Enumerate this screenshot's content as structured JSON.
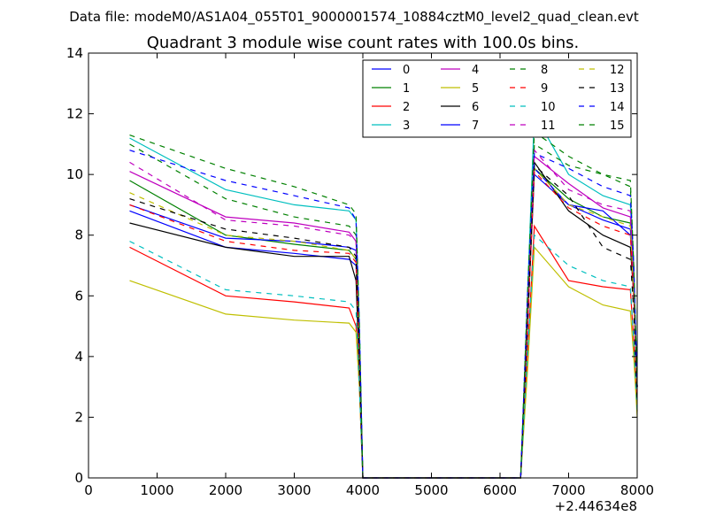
{
  "figure": {
    "suptitle": "Data file: modeM0/AS1A04_055T01_9000001574_10884cztM0_level2_quad_clean.evt"
  },
  "chart_data": {
    "type": "line",
    "title": "Quadrant 3 module wise count rates with 100.0s bins.",
    "xlabel": "",
    "ylabel": "",
    "x_offset_label": "+2.44634e8",
    "xlim": [
      0,
      8000
    ],
    "ylim": [
      0,
      14
    ],
    "xticks": [
      0,
      1000,
      2000,
      3000,
      4000,
      5000,
      6000,
      7000,
      8000
    ],
    "xtick_labels": [
      "0",
      "1000",
      "2000",
      "3000",
      "4000",
      "5000",
      "6000",
      "7000",
      "8000"
    ],
    "yticks": [
      0,
      2,
      4,
      6,
      8,
      10,
      12,
      14
    ],
    "ytick_labels": [
      "0",
      "2",
      "4",
      "6",
      "8",
      "10",
      "12",
      "14"
    ],
    "legend_position": "top-right",
    "x": [
      600,
      2000,
      3000,
      3800,
      3900,
      3950,
      4000,
      4050,
      6250,
      6300,
      6400,
      6500,
      7000,
      7500,
      7900,
      7950,
      8000
    ],
    "series": [
      {
        "name": "0",
        "color": "#0000ff",
        "style": "solid",
        "values": [
          8.8,
          7.6,
          7.4,
          7.2,
          7.0,
          4.0,
          0.0,
          0.0,
          0.0,
          0.0,
          5.0,
          10.0,
          9.0,
          8.5,
          8.2,
          6.5,
          3.0
        ]
      },
      {
        "name": "1",
        "color": "#008000",
        "style": "solid",
        "values": [
          9.8,
          8.0,
          7.7,
          7.5,
          7.2,
          4.0,
          0.0,
          0.0,
          0.0,
          0.0,
          5.0,
          10.2,
          9.2,
          8.6,
          8.4,
          6.5,
          3.0
        ]
      },
      {
        "name": "2",
        "color": "#ff0000",
        "style": "solid",
        "values": [
          7.6,
          6.0,
          5.8,
          5.6,
          5.0,
          3.0,
          0.0,
          0.0,
          0.0,
          0.0,
          4.0,
          8.3,
          6.5,
          6.3,
          6.2,
          4.5,
          2.2
        ]
      },
      {
        "name": "3",
        "color": "#00bfbf",
        "style": "solid",
        "values": [
          11.2,
          9.5,
          9.0,
          8.8,
          8.5,
          5.0,
          0.0,
          0.0,
          0.0,
          0.0,
          6.0,
          12.0,
          10.0,
          9.3,
          9.0,
          7.0,
          3.0
        ]
      },
      {
        "name": "4",
        "color": "#bf00bf",
        "style": "solid",
        "values": [
          10.1,
          8.6,
          8.4,
          8.1,
          7.8,
          4.5,
          0.0,
          0.0,
          0.0,
          0.0,
          5.5,
          10.6,
          9.7,
          8.9,
          8.6,
          6.5,
          3.0
        ]
      },
      {
        "name": "5",
        "color": "#bfbf00",
        "style": "solid",
        "values": [
          6.5,
          5.4,
          5.2,
          5.1,
          4.8,
          3.0,
          0.0,
          0.0,
          0.0,
          0.0,
          3.5,
          7.6,
          6.3,
          5.7,
          5.5,
          4.0,
          2.0
        ]
      },
      {
        "name": "6",
        "color": "#000000",
        "style": "solid",
        "values": [
          8.4,
          7.6,
          7.3,
          7.3,
          6.5,
          3.5,
          0.0,
          0.0,
          0.0,
          0.0,
          5.0,
          10.4,
          8.8,
          8.0,
          7.6,
          6.0,
          3.0
        ]
      },
      {
        "name": "7",
        "color": "#0000ff",
        "style": "solid",
        "values": [
          9.0,
          7.9,
          7.8,
          7.6,
          7.5,
          4.0,
          0.0,
          0.0,
          0.0,
          0.0,
          5.0,
          10.2,
          9.0,
          8.8,
          8.0,
          6.5,
          3.0
        ]
      },
      {
        "name": "8",
        "color": "#008000",
        "style": "dashed",
        "values": [
          11.0,
          9.2,
          8.6,
          8.3,
          8.0,
          4.5,
          0.0,
          0.0,
          0.0,
          0.0,
          5.5,
          11.0,
          10.3,
          10.0,
          9.6,
          7.0,
          3.0
        ]
      },
      {
        "name": "9",
        "color": "#ff0000",
        "style": "dashed",
        "values": [
          9.0,
          7.8,
          7.5,
          7.4,
          7.1,
          4.0,
          0.0,
          0.0,
          0.0,
          0.0,
          5.0,
          10.1,
          8.9,
          8.3,
          8.0,
          6.0,
          3.0
        ]
      },
      {
        "name": "10",
        "color": "#00bfbf",
        "style": "dashed",
        "values": [
          7.8,
          6.2,
          6.0,
          5.8,
          5.5,
          3.0,
          0.0,
          0.0,
          0.0,
          0.0,
          4.0,
          8.0,
          7.0,
          6.5,
          6.3,
          4.5,
          2.2
        ]
      },
      {
        "name": "11",
        "color": "#bf00bf",
        "style": "dashed",
        "values": [
          10.4,
          8.5,
          8.3,
          8.0,
          7.8,
          4.5,
          0.0,
          0.0,
          0.0,
          0.0,
          5.5,
          10.8,
          9.5,
          9.0,
          8.8,
          6.5,
          3.0
        ]
      },
      {
        "name": "12",
        "color": "#bfbf00",
        "style": "dashed",
        "values": [
          9.4,
          8.0,
          7.8,
          7.5,
          7.2,
          4.0,
          0.0,
          0.0,
          0.0,
          0.0,
          5.0,
          10.2,
          9.0,
          8.6,
          8.3,
          6.0,
          3.0
        ]
      },
      {
        "name": "13",
        "color": "#000000",
        "style": "dashed",
        "values": [
          9.2,
          8.2,
          7.9,
          7.6,
          7.3,
          4.0,
          0.0,
          0.0,
          0.0,
          0.0,
          5.0,
          10.3,
          9.3,
          7.6,
          7.2,
          5.5,
          2.5
        ]
      },
      {
        "name": "14",
        "color": "#0000ff",
        "style": "dashed",
        "values": [
          10.8,
          9.8,
          9.3,
          8.9,
          8.5,
          5.0,
          0.0,
          0.0,
          0.0,
          0.0,
          6.0,
          10.7,
          10.2,
          9.6,
          9.3,
          7.0,
          3.0
        ]
      },
      {
        "name": "15",
        "color": "#008000",
        "style": "dashed",
        "values": [
          11.3,
          10.2,
          9.6,
          9.0,
          8.7,
          5.0,
          0.0,
          0.0,
          0.0,
          0.0,
          6.0,
          11.4,
          10.6,
          10.0,
          9.8,
          7.0,
          3.0
        ]
      }
    ]
  }
}
